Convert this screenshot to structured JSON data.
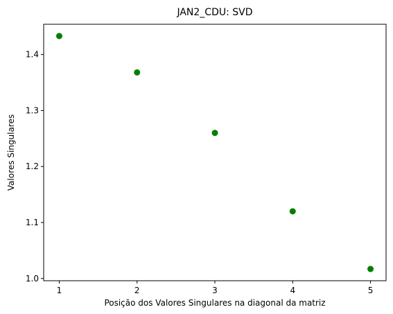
{
  "chart_data": {
    "type": "scatter",
    "title": "JAN2_CDU: SVD",
    "xlabel": "Posição dos Valores Singulares na diagonal da matriz",
    "ylabel": "Valores Singulares",
    "x": [
      1,
      2,
      3,
      4,
      5
    ],
    "y": [
      1.433,
      1.368,
      1.26,
      1.12,
      1.017
    ],
    "xlim": [
      0.8,
      5.2
    ],
    "ylim": [
      0.996,
      1.454
    ],
    "xticks": [
      1,
      2,
      3,
      4,
      5
    ],
    "xtick_labels": [
      "1",
      "2",
      "3",
      "4",
      "5"
    ],
    "yticks": [
      1.0,
      1.1,
      1.2,
      1.3,
      1.4
    ],
    "ytick_labels": [
      "1.0",
      "1.1",
      "1.2",
      "1.3",
      "1.4"
    ],
    "marker_color": "#008000",
    "grid": false,
    "legend": "none"
  }
}
